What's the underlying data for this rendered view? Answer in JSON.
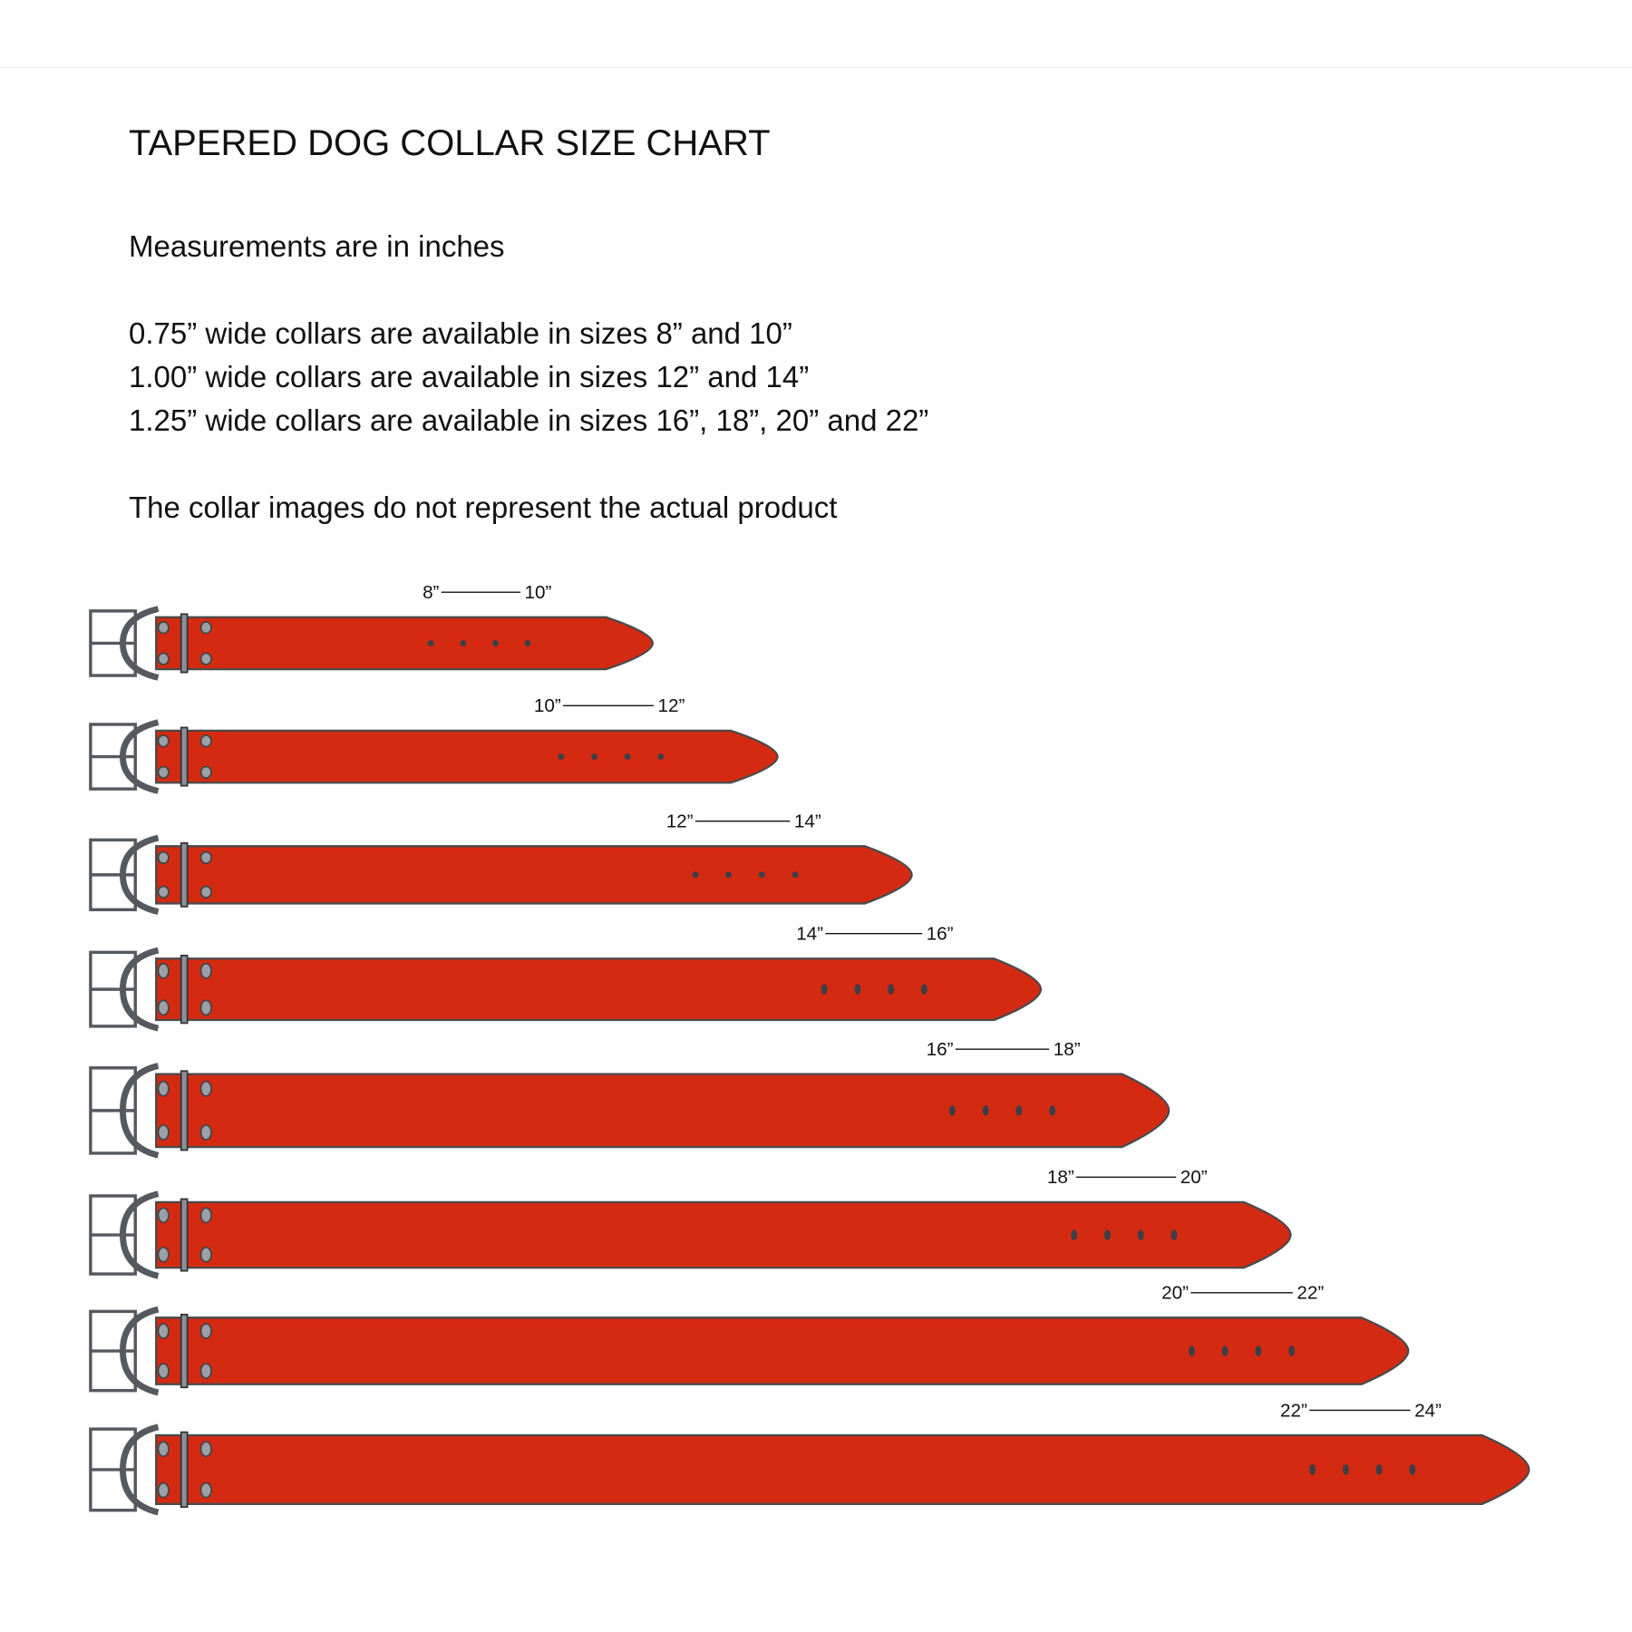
{
  "title": "TAPERED DOG COLLAR SIZE CHART",
  "units_note": "Measurements are in inches",
  "availability": [
    "0.75” wide collars are available in sizes 8” and 10”",
    "1.00” wide collars are available in sizes 12” and 14”",
    "1.25” wide collars are available in sizes 16”, 18”, 20” and 22”"
  ],
  "disclaimer": "The collar images do not represent the actual product",
  "collars": [
    {
      "min": "8”",
      "max": "10”"
    },
    {
      "min": "10”",
      "max": "12”"
    },
    {
      "min": "12”",
      "max": "14”"
    },
    {
      "min": "14”",
      "max": "16”"
    },
    {
      "min": "16”",
      "max": "18”"
    },
    {
      "min": "18”",
      "max": "20”"
    },
    {
      "min": "20”",
      "max": "22”"
    },
    {
      "min": "22”",
      "max": "24”"
    }
  ],
  "colors": {
    "strap": "#d42a12",
    "hardware": "#555a60",
    "holes": "#3a3f48"
  }
}
